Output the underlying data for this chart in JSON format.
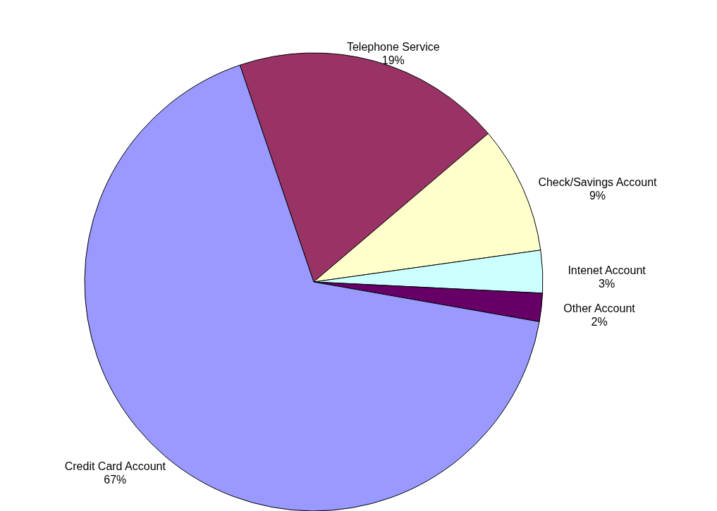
{
  "chart_data": {
    "type": "pie",
    "categories": [
      "Telephone Service",
      "Check/Savings Account",
      "Intenet Account",
      "Other Account",
      "Credit Card Account"
    ],
    "values": [
      19,
      9,
      3,
      2,
      67
    ],
    "value_labels": [
      "19%",
      "9%",
      "3%",
      "2%",
      "67%"
    ],
    "colors": [
      "#993366",
      "#ffffcc",
      "#ccffff",
      "#660066",
      "#9999ff"
    ]
  }
}
